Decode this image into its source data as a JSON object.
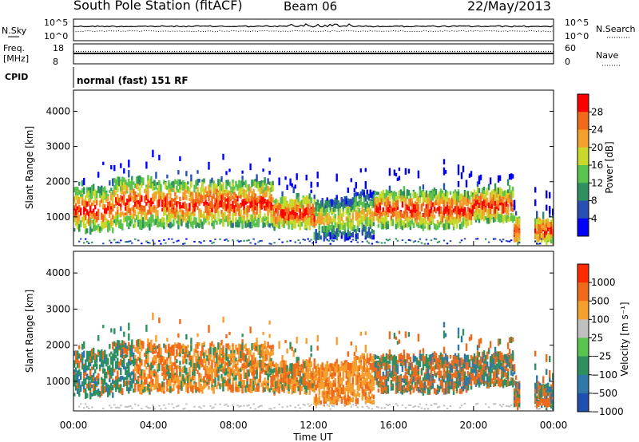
{
  "header": {
    "title": "South Pole Station (fitACF)",
    "beam": "Beam 06",
    "date": "22/May/2013"
  },
  "noise_panel": {
    "left_label": "N.Sky",
    "right_label": "N.Search",
    "left_ticks": [
      "10^5",
      "10^0"
    ],
    "right_ticks": [
      "10^5",
      "10^0"
    ]
  },
  "freq_panel": {
    "left_label_1": "Freq.",
    "left_label_2": "[MHz]",
    "right_label": "Nave",
    "left_ticks": [
      "18",
      "8"
    ],
    "right_ticks": [
      "60",
      "0"
    ]
  },
  "cpid_panel": {
    "label": "CPID",
    "text": "normal (fast) 151 RF"
  },
  "chart_data": [
    {
      "type": "heatmap",
      "name": "power",
      "ylabel": "Slant Range [km]",
      "xlabel": "",
      "ylim": [
        180,
        4600
      ],
      "yticks": [
        "1000",
        "2000",
        "3000",
        "4000"
      ],
      "xlim": [
        0,
        24
      ],
      "colorbar": {
        "label": "Power [dB]",
        "ticks": [
          "4",
          "8",
          "12",
          "16",
          "20",
          "24",
          "28"
        ],
        "colors": [
          "#0000ff",
          "#2a4fb2",
          "#2e8f5f",
          "#59c34e",
          "#c8d92a",
          "#f5a02d",
          "#f06a1a",
          "#ff0000"
        ]
      }
    },
    {
      "type": "heatmap",
      "name": "velocity",
      "ylabel": "Slant Range [km]",
      "xlabel": "Time UT",
      "ylim": [
        180,
        4600
      ],
      "yticks": [
        "1000",
        "2000",
        "3000",
        "4000"
      ],
      "xlim": [
        0,
        24
      ],
      "xticks": [
        "00:00",
        "04:00",
        "08:00",
        "12:00",
        "16:00",
        "20:00",
        "00:00"
      ],
      "colorbar": {
        "label": "Velocity [m s⁻¹]",
        "ticks": [
          "1000",
          "500",
          "100",
          "25",
          "−25",
          "−100",
          "−500",
          "−1000"
        ],
        "colors": [
          "#1f4fb0",
          "#2f78a8",
          "#2e8f5f",
          "#59c34e",
          "#c0c0c0",
          "#f5a02d",
          "#f06a1a",
          "#ff2a00"
        ]
      }
    }
  ]
}
